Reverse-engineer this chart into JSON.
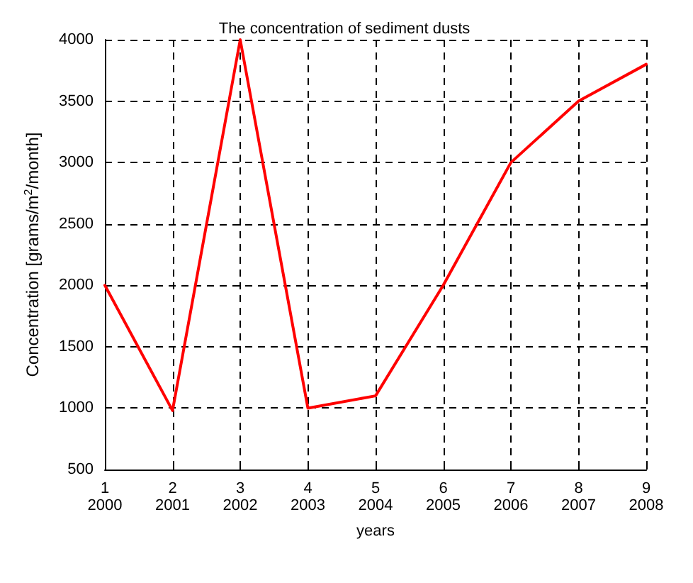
{
  "chart_data": {
    "type": "line",
    "title": "The concentration of sediment dusts",
    "xlabel": "years",
    "ylabel": "Concentration [grams/m$^{2}$/month]",
    "x": [
      1,
      2,
      3,
      4,
      5,
      6,
      7,
      8,
      9
    ],
    "series": [
      {
        "color": "#ff0000",
        "values": [
          2000,
          980,
          4000,
          1000,
          1100,
          2000,
          3000,
          3500,
          3800
        ]
      }
    ],
    "xlim": [
      1,
      9
    ],
    "xticks": [
      1,
      2,
      3,
      4,
      5,
      6,
      7,
      8,
      9
    ],
    "ylim": [
      500,
      4000
    ],
    "yticks": [
      500,
      1000,
      1500,
      2000,
      2500,
      3000,
      3500,
      4000
    ],
    "annotations": [
      "2000",
      "2001",
      "2002",
      "2003",
      "2004",
      "2005",
      "2006",
      "2007",
      "2008"
    ],
    "grid": true,
    "line_style": "solid",
    "marker": "none"
  }
}
